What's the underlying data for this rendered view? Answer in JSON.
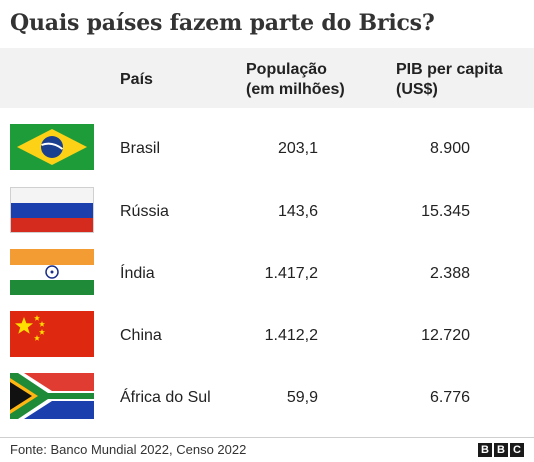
{
  "title": "Quais países fazem parte do Brics?",
  "headers": {
    "country": "País",
    "population_line1": "População",
    "population_line2": "(em milhões)",
    "gdp_line1": "PIB per capita",
    "gdp_line2": "(US$)"
  },
  "rows": [
    {
      "country": "Brasil",
      "population": "203,1",
      "gdp": "8.900",
      "flag": "brazil-flag-icon"
    },
    {
      "country": "Rússia",
      "population": "143,6",
      "gdp": "15.345",
      "flag": "russia-flag-icon"
    },
    {
      "country": "Índia",
      "population": "1.417,2",
      "gdp": "2.388",
      "flag": "india-flag-icon"
    },
    {
      "country": "China",
      "population": "1.412,2",
      "gdp": "12.720",
      "flag": "china-flag-icon"
    },
    {
      "country": "África do Sul",
      "population": "59,9",
      "gdp": "6.776",
      "flag": "south-africa-flag-icon"
    }
  ],
  "footer": {
    "source": "Fonte: Banco Mundial 2022, Censo 2022",
    "logo": [
      "B",
      "B",
      "C"
    ]
  },
  "chart_data": {
    "type": "table",
    "title": "Quais países fazem parte do Brics?",
    "columns": [
      "País",
      "População (em milhões)",
      "PIB per capita (US$)"
    ],
    "rows": [
      [
        "Brasil",
        203.1,
        8900
      ],
      [
        "Rússia",
        143.6,
        15345
      ],
      [
        "Índia",
        1417.2,
        2388
      ],
      [
        "China",
        1412.2,
        12720
      ],
      [
        "África do Sul",
        59.9,
        6776
      ]
    ]
  }
}
